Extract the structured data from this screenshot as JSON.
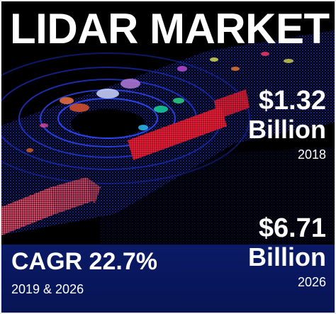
{
  "title": "LIDAR MARKET",
  "stats": {
    "start": {
      "amount": "$1.32",
      "unit": "Billion",
      "year": "2018"
    },
    "end": {
      "amount": "$6.71",
      "unit": "Billion",
      "year": "2026"
    }
  },
  "cagr": {
    "value": "CAGR 22.7%",
    "period": "2019 & 2026"
  },
  "colors": {
    "background": "#000000",
    "band": "#0a1a66",
    "text": "#ffffff",
    "scan_blue": "#1f36ff",
    "scan_red": "#e0192e",
    "scan_pink": "#ff5a8a"
  },
  "image": {
    "name": "lidar-point-cloud-illustration"
  }
}
